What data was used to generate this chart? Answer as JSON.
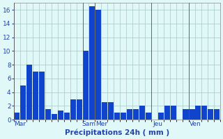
{
  "values": [
    1,
    5,
    8,
    7,
    7,
    1.5,
    0.8,
    1.3,
    1,
    3,
    3,
    10,
    16.5,
    16,
    2.5,
    2.5,
    1,
    1,
    1.5,
    1.5,
    2,
    1,
    0,
    1,
    2,
    2,
    0,
    1.5,
    1.5,
    2,
    2,
    1.5,
    1.5
  ],
  "bar_color": "#1144cc",
  "background_color": "#e0f8f8",
  "grid_color": "#a8c8c8",
  "axis_label_color": "#2244aa",
  "tick_color": "#2244aa",
  "xlabel": "Précipitations 24h ( mm )",
  "ylim": [
    0,
    17
  ],
  "yticks": [
    0,
    2,
    4,
    6,
    8,
    10,
    12,
    14,
    16
  ],
  "day_labels": [
    "Mar",
    "Sam",
    "Mer",
    "Jeu",
    "Ven"
  ],
  "day_tick_positions": [
    0.5,
    11.5,
    13.5,
    22.5,
    28.5
  ],
  "vline_positions": [
    0,
    11,
    13,
    22,
    28
  ],
  "xlabel_fontsize": 7.5,
  "tick_fontsize": 6.5,
  "figwidth": 3.2,
  "figheight": 2.0,
  "dpi": 100
}
